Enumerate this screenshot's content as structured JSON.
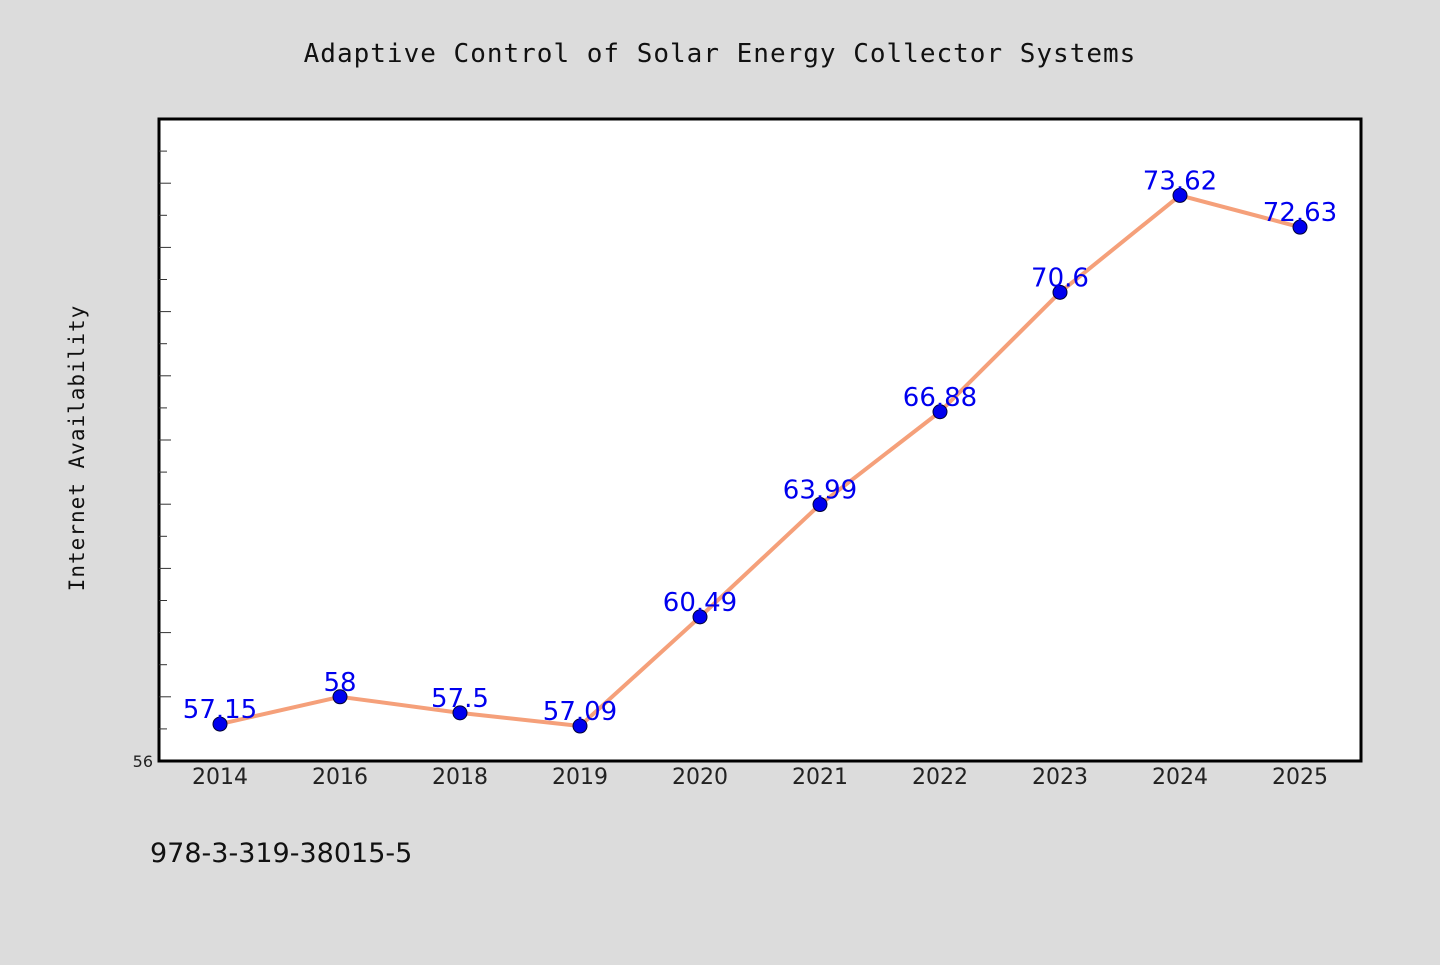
{
  "chart_data": {
    "type": "line",
    "title": "Adaptive Control of Solar Energy Collector Systems",
    "xlabel": "",
    "ylabel": "Internet Availability",
    "categories": [
      "2014",
      "2016",
      "2018",
      "2019",
      "2020",
      "2021",
      "2022",
      "2023",
      "2024",
      "2025"
    ],
    "series": [
      {
        "values": [
          57.15,
          58,
          57.5,
          57.09,
          60.49,
          63.99,
          66.88,
          70.6,
          73.62,
          72.63
        ],
        "labels": [
          "57.15",
          "58",
          "57.5",
          "57.09",
          "60.49",
          "63.99",
          "66.88",
          "70.6",
          "73.62",
          "72.63"
        ]
      }
    ],
    "y_tick_labels": [
      "56"
    ],
    "ylim": [
      56,
      76
    ],
    "grid": false,
    "legend": "none",
    "colors": {
      "line": "#f5a07a",
      "marker": "#0000ee",
      "data_label": "#0000ee",
      "plot_background": "#ffffff",
      "figure_background": "#dcdcdc"
    }
  },
  "footer": {
    "isbn": "978-3-319-38015-5"
  }
}
